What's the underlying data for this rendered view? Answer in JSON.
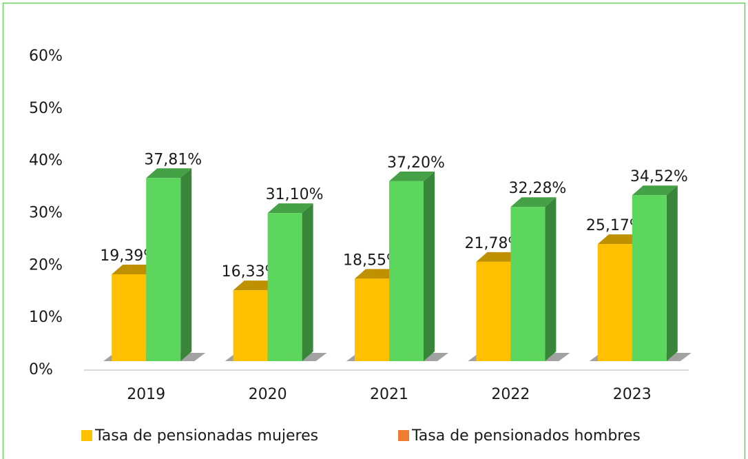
{
  "chart_data": {
    "type": "bar3d",
    "categories": [
      "2019",
      "2020",
      "2021",
      "2022",
      "2023"
    ],
    "series": [
      {
        "name": "Tasa de pensionadas mujeres",
        "color": "#FFC000",
        "legend_color": "#FFC000",
        "values": [
          19.39,
          16.33,
          18.55,
          21.78,
          25.17
        ],
        "value_labels": [
          "19,39%",
          "16,33%",
          "18,55%",
          "21,78%",
          "25,17%"
        ]
      },
      {
        "name": "Tasa de pensionados hombres",
        "color": "#5CD65C",
        "legend_color": "#ED7D31",
        "values": [
          37.81,
          31.1,
          37.2,
          32.28,
          34.52
        ],
        "value_labels": [
          "37,81%",
          "31,10%",
          "37,20%",
          "32,28%",
          "34,52%"
        ]
      }
    ],
    "ylim": [
      0,
      60
    ],
    "yticks": [
      {
        "value": 0,
        "label": "0%"
      },
      {
        "value": 10,
        "label": "10%"
      },
      {
        "value": 20,
        "label": "20%"
      },
      {
        "value": 30,
        "label": "30%"
      },
      {
        "value": 40,
        "label": "40%"
      },
      {
        "value": 50,
        "label": "50%"
      },
      {
        "value": 60,
        "label": "60%"
      }
    ],
    "legend": "bottom"
  }
}
